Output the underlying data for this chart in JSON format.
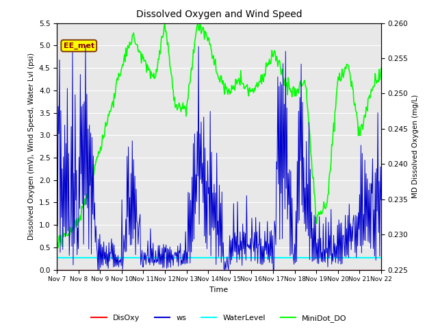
{
  "title": "Dissolved Oxygen and Wind Speed",
  "xlabel": "Time",
  "ylabel_left": "Dissolved Oxygen (mV), Wind Speed, Water Lvl (psi)",
  "ylabel_right": "MD Dissolved Oxygen (mg/L)",
  "ylim_left": [
    0.0,
    5.5
  ],
  "ylim_right": [
    0.225,
    0.26
  ],
  "yticks_left": [
    0.0,
    0.5,
    1.0,
    1.5,
    2.0,
    2.5,
    3.0,
    3.5,
    4.0,
    4.5,
    5.0,
    5.5
  ],
  "yticks_right": [
    0.225,
    0.23,
    0.235,
    0.24,
    0.245,
    0.25,
    0.255,
    0.26
  ],
  "xtick_labels": [
    "Nov 7",
    "Nov 8",
    "Nov 9",
    "Nov 10",
    "Nov 11",
    "Nov 12",
    "Nov 13",
    "Nov 14",
    "Nov 15",
    "Nov 16",
    "Nov 17",
    "Nov 18",
    "Nov 19",
    "Nov 20",
    "Nov 21",
    "Nov 22"
  ],
  "annotation_text": "EE_met",
  "annotation_box_color": "#FFFF00",
  "annotation_box_edge": "#8B4513",
  "colors": {
    "DisOxy": "#FF0000",
    "ws": "#0000CD",
    "WaterLevel": "#00FFFF",
    "MiniDot_DO": "#00FF00"
  },
  "background_color": "#E8E8E8",
  "grid_color": "#FFFFFF",
  "water_level_value": 0.27,
  "n_points": 500
}
